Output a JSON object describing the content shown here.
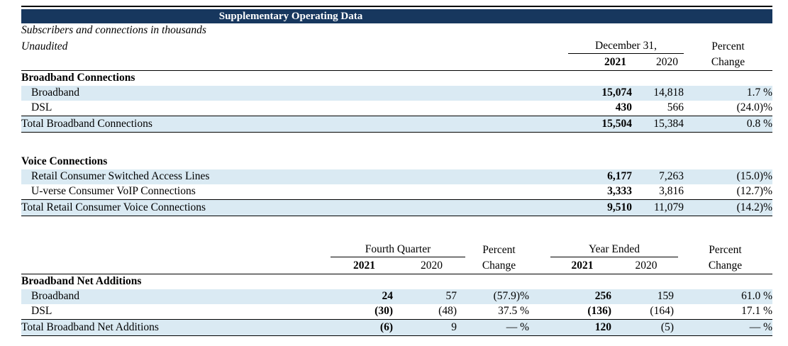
{
  "title": "Supplementary Operating Data",
  "notes": {
    "line1": "Subscribers and connections in thousands",
    "line2": "Unaudited"
  },
  "colors": {
    "title_bar_bg": "#17375E",
    "title_text": "#FFFFFF",
    "row_stripe": "#DAEAF3",
    "rule": "#000000"
  },
  "t1": {
    "period_header": "December 31,",
    "percent_header": {
      "top": "Percent",
      "bottom": "Change"
    },
    "years": {
      "y2021": "2021",
      "y2020": "2020"
    },
    "sections": [
      {
        "header": "Broadband Connections",
        "rows": [
          {
            "label": "Broadband",
            "v2021": "15,074",
            "v2020": "14,818",
            "pct": "1.7 %"
          },
          {
            "label": "DSL",
            "v2021": "430",
            "v2020": "566",
            "pct": "(24.0)%"
          }
        ],
        "total": {
          "label": "Total Broadband Connections",
          "v2021": "15,504",
          "v2020": "15,384",
          "pct": "0.8 %"
        }
      },
      {
        "header": "Voice Connections",
        "rows": [
          {
            "label": "Retail Consumer Switched Access Lines",
            "v2021": "6,177",
            "v2020": "7,263",
            "pct": "(15.0)%"
          },
          {
            "label": "U-verse Consumer VoIP Connections",
            "v2021": "3,333",
            "v2020": "3,816",
            "pct": "(12.7)%"
          }
        ],
        "total": {
          "label": "Total Retail Consumer Voice Connections",
          "v2021": "9,510",
          "v2020": "11,079",
          "pct": "(14.2)%"
        }
      }
    ]
  },
  "t2": {
    "group_headers": {
      "quarter": "Fourth Quarter",
      "year": "Year Ended"
    },
    "percent_header": {
      "top": "Percent",
      "bottom": "Change"
    },
    "years": {
      "y2021": "2021",
      "y2020": "2020"
    },
    "section_header": "Broadband Net Additions",
    "rows": [
      {
        "label": "Broadband",
        "q2021": "24",
        "q2020": "57",
        "qpct": "(57.9)%",
        "a2021": "256",
        "a2020": "159",
        "apct": "61.0 %"
      },
      {
        "label": "DSL",
        "q2021": "(30)",
        "q2020": "(48)",
        "qpct": "37.5 %",
        "a2021": "(136)",
        "a2020": "(164)",
        "apct": "17.1 %"
      }
    ],
    "total": {
      "label": "Total Broadband Net Additions",
      "q2021": "(6)",
      "q2020": "9",
      "qpct": "— %",
      "a2021": "120",
      "a2020": "(5)",
      "apct": "— %"
    }
  }
}
